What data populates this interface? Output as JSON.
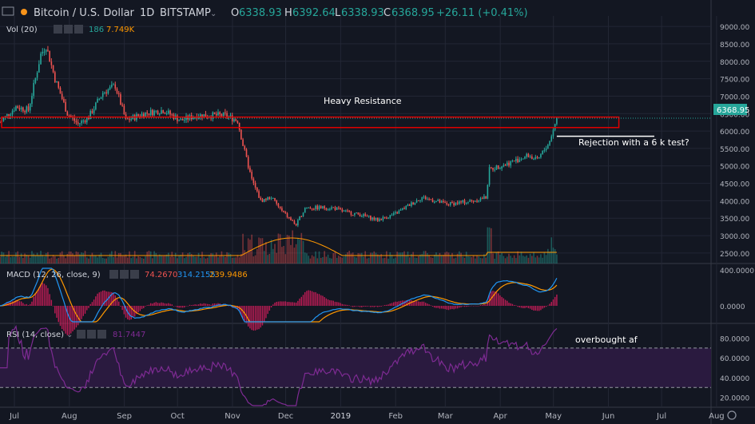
{
  "header": {
    "symbol": "Bitcoin / U.S. Dollar",
    "interval": "1D",
    "exchange": "BITSTAMP",
    "open_label": "O",
    "open": "6338.93",
    "high_label": "H",
    "high": "6392.64",
    "low_label": "L",
    "low": "6338.93",
    "close_label": "C",
    "close": "6368.95",
    "change": "+26.11 (+0.41%)"
  },
  "indicators": {
    "vol": {
      "label": "Vol (20)",
      "v1": "186",
      "v2": "7.749K"
    },
    "macd": {
      "label": "MACD (12, 26, close, 9)",
      "v1": "74.2670",
      "v2": "314.2155",
      "v3": "239.9486"
    },
    "rsi": {
      "label": "RSI (14, close)",
      "v1": "81.7447"
    }
  },
  "annotations": {
    "resistance": "Heavy Resistance",
    "rejection": "Rejection with a 6 k test?",
    "overbought": "overbought af"
  },
  "price_axis_ticks": [
    "9000.00",
    "8500.00",
    "8000.00",
    "7500.00",
    "7000.00",
    "6500.00",
    "6000.00",
    "5500.00",
    "5000.00",
    "4500.00",
    "4000.00",
    "3500.00",
    "3000.00",
    "2500.00"
  ],
  "price_label": "6368.95",
  "macd_axis_ticks": [
    "400.0000",
    "0.0000"
  ],
  "rsi_axis_ticks": [
    "80.0000",
    "60.0000",
    "40.0000",
    "20.0000"
  ],
  "time_axis_labels": [
    "Jul",
    "Aug",
    "Sep",
    "Oct",
    "Nov",
    "Dec",
    "2019",
    "Feb",
    "Mar",
    "Apr",
    "May",
    "Jun",
    "Jul",
    "Aug"
  ],
  "colors": {
    "background": "#131722",
    "up": "#26a69a",
    "down": "#ef5350",
    "grid": "#232735",
    "macd_line": "#2196f3",
    "signal_line": "#ff9800",
    "rsi_line": "#7e2b93",
    "rsi_band": "#2a1a3f",
    "resistance_box": "#e00000",
    "vol_ma": "#ff9800"
  },
  "chart_data": {
    "type": "candlestick",
    "title": "Bitcoin / U.S. Dollar 1D BITSTAMP",
    "x_start": "2018-07-01",
    "x_end": "2019-08-06",
    "price_close_path": [
      [
        "2018-07-01",
        6250
      ],
      [
        "2018-07-10",
        6700
      ],
      [
        "2018-07-17",
        6600
      ],
      [
        "2018-07-24",
        8200
      ],
      [
        "2018-07-27",
        8450
      ],
      [
        "2018-08-01",
        7500
      ],
      [
        "2018-08-08",
        6500
      ],
      [
        "2018-08-14",
        6200
      ],
      [
        "2018-08-20",
        6400
      ],
      [
        "2018-08-28",
        7100
      ],
      [
        "2018-09-04",
        7300
      ],
      [
        "2018-09-10",
        6300
      ],
      [
        "2018-09-20",
        6500
      ],
      [
        "2018-10-01",
        6600
      ],
      [
        "2018-10-11",
        6300
      ],
      [
        "2018-10-20",
        6450
      ],
      [
        "2018-11-05",
        6450
      ],
      [
        "2018-11-12",
        6300
      ],
      [
        "2018-11-15",
        5600
      ],
      [
        "2018-11-20",
        4600
      ],
      [
        "2018-11-25",
        4000
      ],
      [
        "2018-12-01",
        4100
      ],
      [
        "2018-12-07",
        3700
      ],
      [
        "2018-12-15",
        3300
      ],
      [
        "2018-12-20",
        3800
      ],
      [
        "2018-12-25",
        3800
      ],
      [
        "2019-01-05",
        3800
      ],
      [
        "2019-01-10",
        3700
      ],
      [
        "2019-01-20",
        3600
      ],
      [
        "2019-01-30",
        3450
      ],
      [
        "2019-02-08",
        3600
      ],
      [
        "2019-02-24",
        4100
      ],
      [
        "2019-03-10",
        3900
      ],
      [
        "2019-03-25",
        4000
      ],
      [
        "2019-04-01",
        4100
      ],
      [
        "2019-04-03",
        4900
      ],
      [
        "2019-04-15",
        5100
      ],
      [
        "2019-04-25",
        5300
      ],
      [
        "2019-04-30",
        5150
      ],
      [
        "2019-05-07",
        5700
      ],
      [
        "2019-05-11",
        6368.95
      ]
    ],
    "resistance_zone": {
      "label": "Heavy Resistance",
      "low": 6100,
      "high": 6400,
      "from": "2018-07-01",
      "to": "2019-06-15"
    },
    "support_test_line": {
      "label": "Rejection with a 6 k test?",
      "value": 5850,
      "from": "2019-05-11",
      "to": "2019-07-05"
    },
    "rsi": {
      "overbought": 70,
      "oversold": 30,
      "last": 81.7447
    },
    "macd": {
      "macd": 314.2155,
      "signal": 239.9486,
      "histogram": 74.267
    },
    "volume": {
      "last": 186,
      "ma": 7749
    },
    "ylim_price": [
      2200,
      9300
    ],
    "ylim_rsi": [
      10,
      95
    ]
  }
}
